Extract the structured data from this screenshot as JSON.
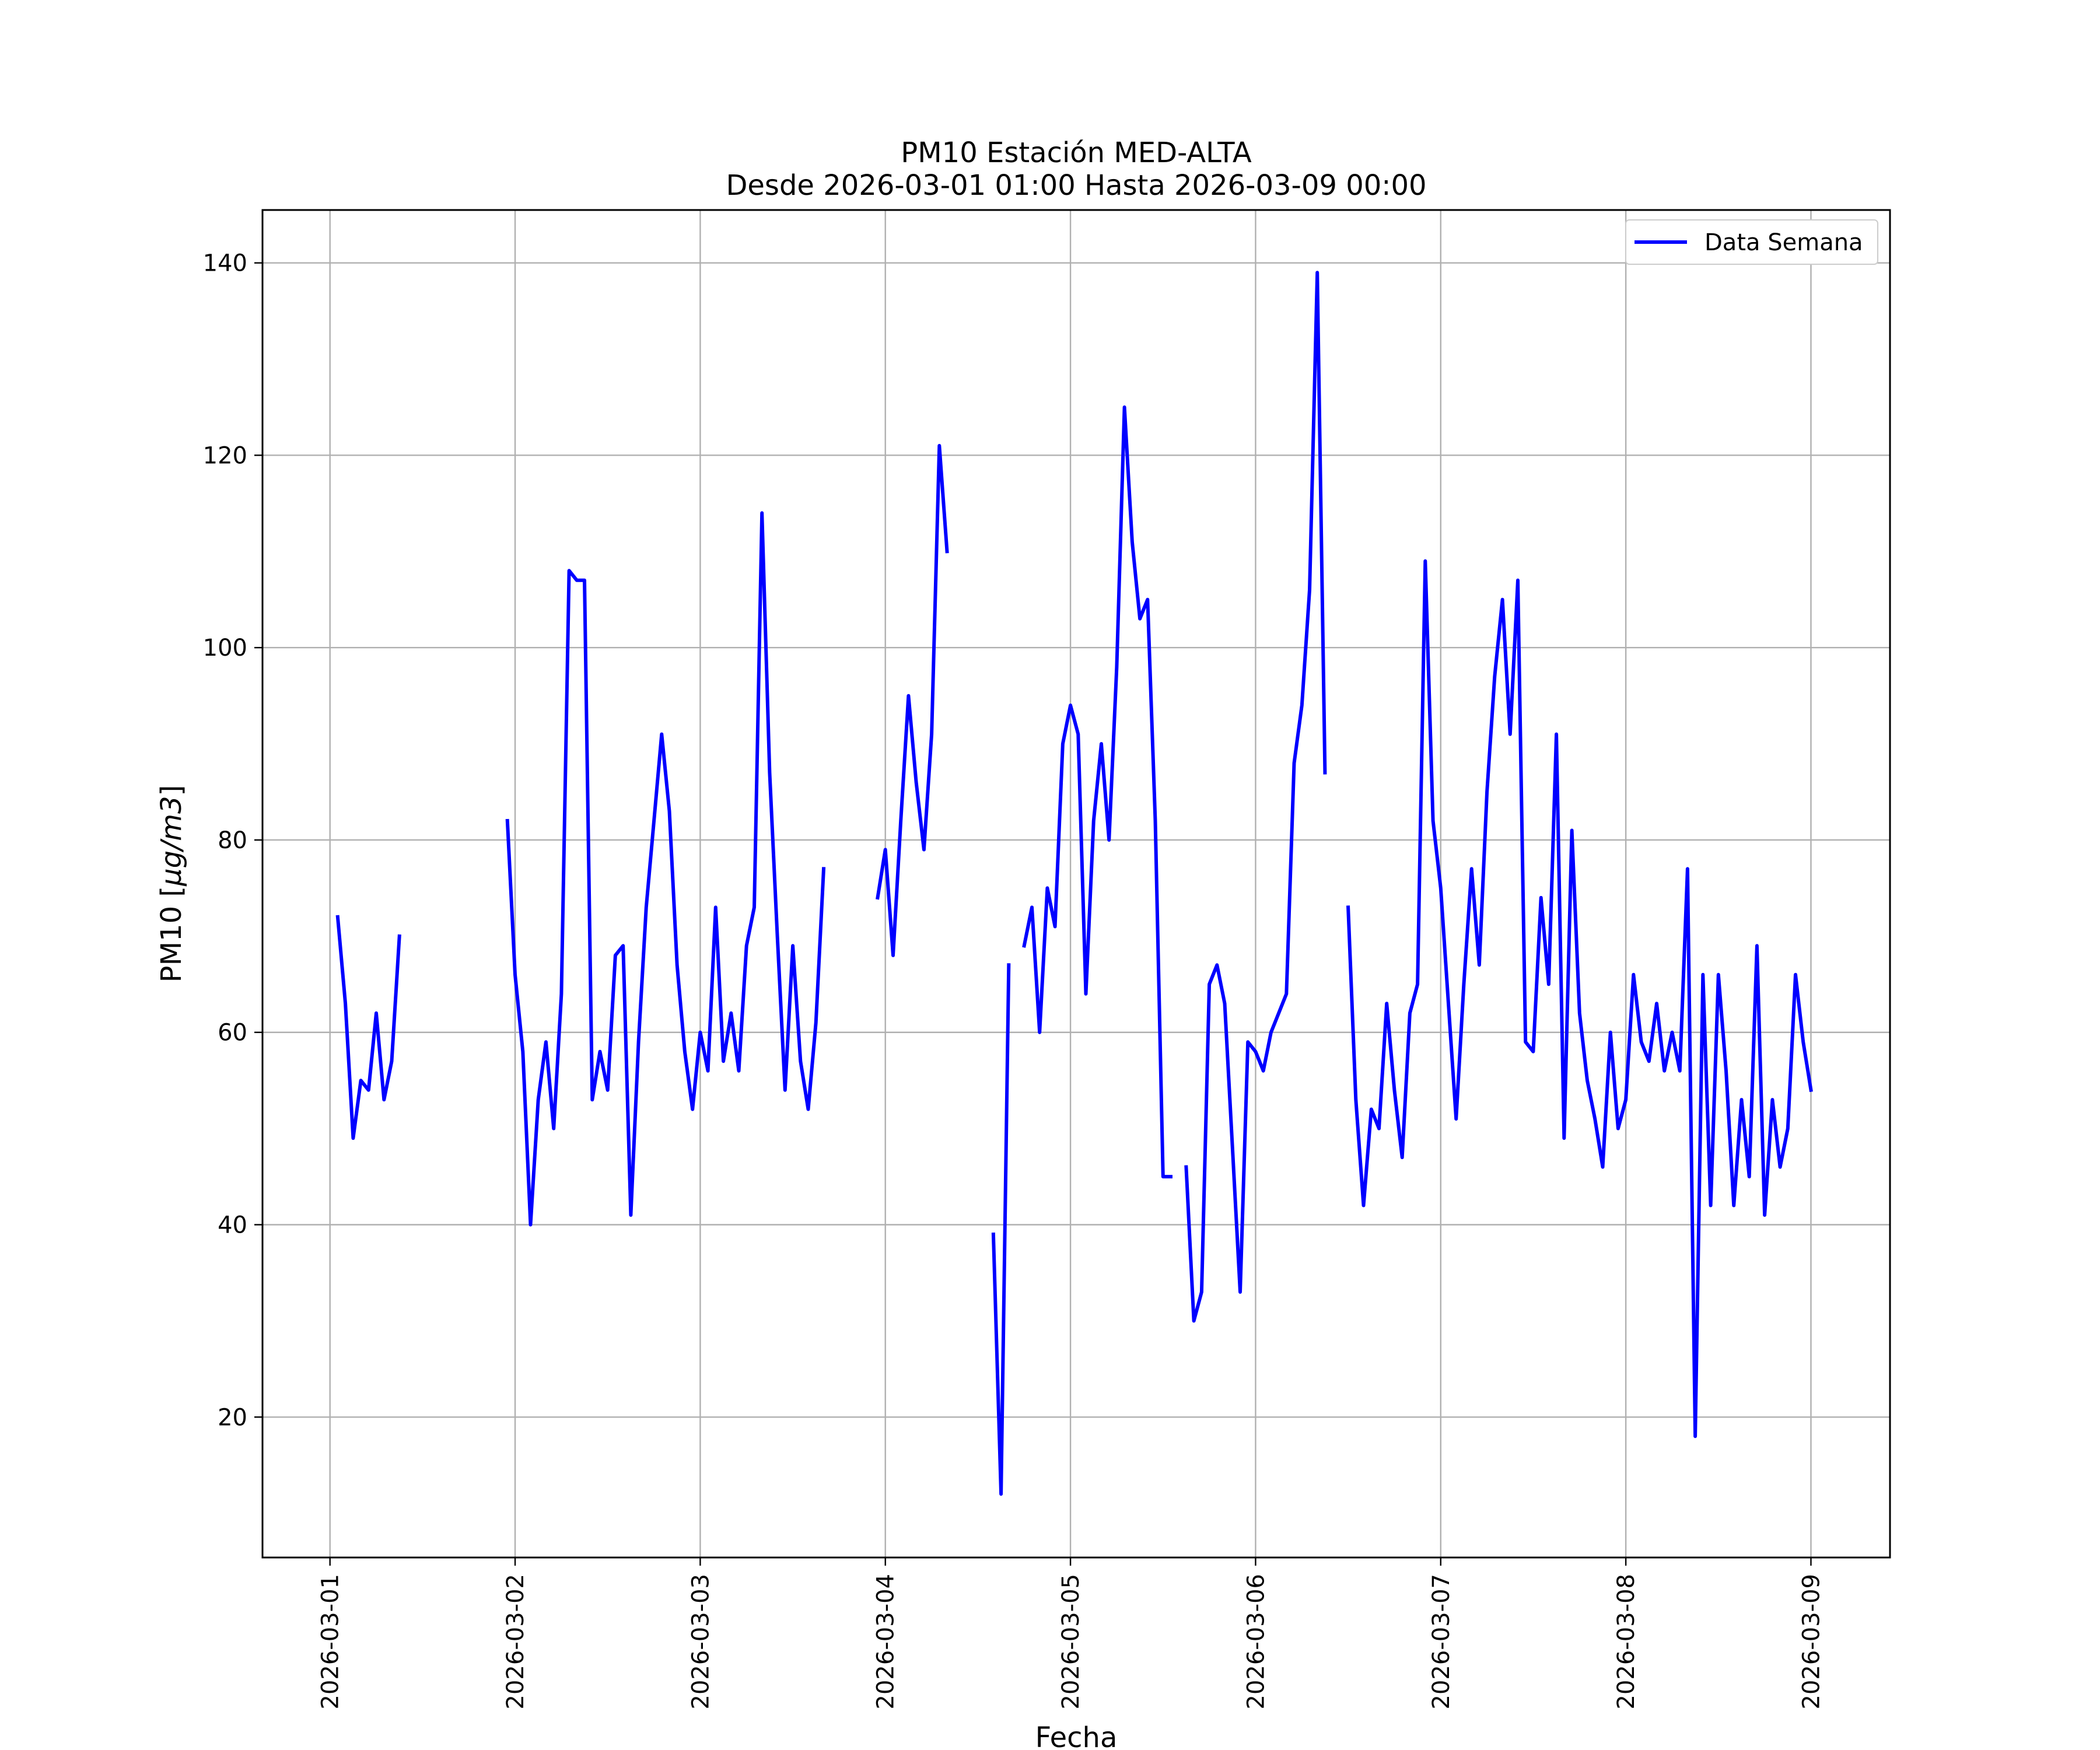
{
  "chart_data": {
    "type": "line",
    "title": "PM10 Estación MED-ALTA",
    "subtitle": "Desde 2026-03-01 01:00 Hasta 2026-03-09 00:00",
    "xlabel": "Fecha",
    "ylabel_text": "PM10 [",
    "ylabel_math": "μg/m3",
    "ylabel_close": "]",
    "x_ticks": [
      "2026-03-01",
      "2026-03-02",
      "2026-03-03",
      "2026-03-04",
      "2026-03-05",
      "2026-03-06",
      "2026-03-07",
      "2026-03-08",
      "2026-03-09"
    ],
    "y_ticks": [
      20,
      40,
      60,
      80,
      100,
      120,
      140
    ],
    "xlim": [
      "2026-02-28 15:15",
      "2026-03-09 10:15"
    ],
    "ylim": [
      5.4,
      145.5
    ],
    "grid": true,
    "legend_position": "top-right",
    "series": [
      {
        "name": "Data Semana",
        "color": "#0000ff",
        "segments": [
          [
            [
              "2026-03-01 01:00",
              72
            ],
            [
              "2026-03-01 02:00",
              63
            ],
            [
              "2026-03-01 03:00",
              49
            ],
            [
              "2026-03-01 04:00",
              55
            ],
            [
              "2026-03-01 05:00",
              54
            ],
            [
              "2026-03-01 06:00",
              62
            ],
            [
              "2026-03-01 07:00",
              53
            ],
            [
              "2026-03-01 08:00",
              57
            ],
            [
              "2026-03-01 09:00",
              70
            ]
          ],
          [
            [
              "2026-03-01 23:00",
              82
            ],
            [
              "2026-03-02 00:00",
              66
            ],
            [
              "2026-03-02 01:00",
              58
            ],
            [
              "2026-03-02 02:00",
              40
            ],
            [
              "2026-03-02 03:00",
              53
            ],
            [
              "2026-03-02 04:00",
              59
            ],
            [
              "2026-03-02 05:00",
              50
            ],
            [
              "2026-03-02 06:00",
              64
            ],
            [
              "2026-03-02 07:00",
              108
            ],
            [
              "2026-03-02 08:00",
              107
            ],
            [
              "2026-03-02 09:00",
              107
            ],
            [
              "2026-03-02 10:00",
              53
            ],
            [
              "2026-03-02 11:00",
              58
            ],
            [
              "2026-03-02 12:00",
              54
            ],
            [
              "2026-03-02 13:00",
              68
            ],
            [
              "2026-03-02 14:00",
              69
            ],
            [
              "2026-03-02 15:00",
              41
            ],
            [
              "2026-03-02 16:00",
              59
            ],
            [
              "2026-03-02 17:00",
              73
            ],
            [
              "2026-03-02 18:00",
              82
            ],
            [
              "2026-03-02 19:00",
              91
            ],
            [
              "2026-03-02 20:00",
              83
            ],
            [
              "2026-03-02 21:00",
              67
            ],
            [
              "2026-03-02 22:00",
              58
            ],
            [
              "2026-03-02 23:00",
              52
            ],
            [
              "2026-03-03 00:00",
              60
            ],
            [
              "2026-03-03 01:00",
              56
            ],
            [
              "2026-03-03 02:00",
              73
            ],
            [
              "2026-03-03 03:00",
              57
            ],
            [
              "2026-03-03 04:00",
              62
            ],
            [
              "2026-03-03 05:00",
              56
            ],
            [
              "2026-03-03 06:00",
              69
            ],
            [
              "2026-03-03 07:00",
              73
            ],
            [
              "2026-03-03 08:00",
              114
            ],
            [
              "2026-03-03 09:00",
              87
            ],
            [
              "2026-03-03 10:00",
              70
            ],
            [
              "2026-03-03 11:00",
              54
            ],
            [
              "2026-03-03 12:00",
              69
            ],
            [
              "2026-03-03 13:00",
              57
            ],
            [
              "2026-03-03 14:00",
              52
            ],
            [
              "2026-03-03 15:00",
              61
            ],
            [
              "2026-03-03 16:00",
              77
            ]
          ],
          [
            [
              "2026-03-03 23:00",
              74
            ],
            [
              "2026-03-04 00:00",
              79
            ],
            [
              "2026-03-04 01:00",
              68
            ],
            [
              "2026-03-04 02:00",
              82
            ],
            [
              "2026-03-04 03:00",
              95
            ],
            [
              "2026-03-04 04:00",
              86
            ],
            [
              "2026-03-04 05:00",
              79
            ],
            [
              "2026-03-04 06:00",
              91
            ],
            [
              "2026-03-04 07:00",
              121
            ],
            [
              "2026-03-04 08:00",
              110
            ]
          ],
          [
            [
              "2026-03-04 14:00",
              39
            ],
            [
              "2026-03-04 15:00",
              12
            ],
            [
              "2026-03-04 16:00",
              67
            ]
          ],
          [
            [
              "2026-03-04 18:00",
              69
            ],
            [
              "2026-03-04 19:00",
              73
            ],
            [
              "2026-03-04 20:00",
              60
            ],
            [
              "2026-03-04 21:00",
              75
            ],
            [
              "2026-03-04 22:00",
              71
            ],
            [
              "2026-03-04 23:00",
              90
            ],
            [
              "2026-03-05 00:00",
              94
            ],
            [
              "2026-03-05 01:00",
              91
            ],
            [
              "2026-03-05 02:00",
              64
            ],
            [
              "2026-03-05 03:00",
              82
            ],
            [
              "2026-03-05 04:00",
              90
            ],
            [
              "2026-03-05 05:00",
              80
            ],
            [
              "2026-03-05 06:00",
              98
            ],
            [
              "2026-03-05 07:00",
              125
            ],
            [
              "2026-03-05 08:00",
              111
            ],
            [
              "2026-03-05 09:00",
              103
            ],
            [
              "2026-03-05 10:00",
              105
            ],
            [
              "2026-03-05 11:00",
              82
            ],
            [
              "2026-03-05 12:00",
              45
            ],
            [
              "2026-03-05 13:00",
              45
            ]
          ],
          [
            [
              "2026-03-05 15:00",
              46
            ],
            [
              "2026-03-05 16:00",
              30
            ],
            [
              "2026-03-05 17:00",
              33
            ],
            [
              "2026-03-05 18:00",
              65
            ],
            [
              "2026-03-05 19:00",
              67
            ],
            [
              "2026-03-05 20:00",
              63
            ],
            [
              "2026-03-05 21:00",
              48
            ],
            [
              "2026-03-05 22:00",
              33
            ],
            [
              "2026-03-05 23:00",
              59
            ],
            [
              "2026-03-06 00:00",
              58
            ],
            [
              "2026-03-06 01:00",
              56
            ],
            [
              "2026-03-06 02:00",
              60
            ],
            [
              "2026-03-06 03:00",
              62
            ],
            [
              "2026-03-06 04:00",
              64
            ],
            [
              "2026-03-06 05:00",
              88
            ],
            [
              "2026-03-06 06:00",
              94
            ],
            [
              "2026-03-06 07:00",
              106
            ],
            [
              "2026-03-06 08:00",
              139
            ],
            [
              "2026-03-06 09:00",
              87
            ]
          ],
          [
            [
              "2026-03-06 12:00",
              73
            ],
            [
              "2026-03-06 13:00",
              53
            ],
            [
              "2026-03-06 14:00",
              42
            ],
            [
              "2026-03-06 15:00",
              52
            ],
            [
              "2026-03-06 16:00",
              50
            ],
            [
              "2026-03-06 17:00",
              63
            ],
            [
              "2026-03-06 18:00",
              54
            ],
            [
              "2026-03-06 19:00",
              47
            ],
            [
              "2026-03-06 20:00",
              62
            ],
            [
              "2026-03-06 21:00",
              65
            ],
            [
              "2026-03-06 22:00",
              109
            ],
            [
              "2026-03-06 23:00",
              82
            ],
            [
              "2026-03-07 00:00",
              75
            ],
            [
              "2026-03-07 01:00",
              63
            ],
            [
              "2026-03-07 02:00",
              51
            ],
            [
              "2026-03-07 03:00",
              65
            ],
            [
              "2026-03-07 04:00",
              77
            ],
            [
              "2026-03-07 05:00",
              67
            ],
            [
              "2026-03-07 06:00",
              85
            ],
            [
              "2026-03-07 07:00",
              97
            ],
            [
              "2026-03-07 08:00",
              105
            ],
            [
              "2026-03-07 09:00",
              91
            ],
            [
              "2026-03-07 10:00",
              107
            ],
            [
              "2026-03-07 11:00",
              59
            ],
            [
              "2026-03-07 12:00",
              58
            ],
            [
              "2026-03-07 13:00",
              74
            ],
            [
              "2026-03-07 14:00",
              65
            ],
            [
              "2026-03-07 15:00",
              91
            ],
            [
              "2026-03-07 16:00",
              49
            ],
            [
              "2026-03-07 17:00",
              81
            ],
            [
              "2026-03-07 18:00",
              62
            ],
            [
              "2026-03-07 19:00",
              55
            ],
            [
              "2026-03-07 20:00",
              51
            ],
            [
              "2026-03-07 21:00",
              46
            ],
            [
              "2026-03-07 22:00",
              60
            ],
            [
              "2026-03-07 23:00",
              50
            ],
            [
              "2026-03-08 00:00",
              53
            ],
            [
              "2026-03-08 01:00",
              66
            ],
            [
              "2026-03-08 02:00",
              59
            ],
            [
              "2026-03-08 03:00",
              57
            ],
            [
              "2026-03-08 04:00",
              63
            ],
            [
              "2026-03-08 05:00",
              56
            ],
            [
              "2026-03-08 06:00",
              60
            ],
            [
              "2026-03-08 07:00",
              56
            ],
            [
              "2026-03-08 08:00",
              77
            ],
            [
              "2026-03-08 09:00",
              18
            ],
            [
              "2026-03-08 10:00",
              66
            ],
            [
              "2026-03-08 11:00",
              42
            ],
            [
              "2026-03-08 12:00",
              66
            ],
            [
              "2026-03-08 13:00",
              56
            ],
            [
              "2026-03-08 14:00",
              42
            ],
            [
              "2026-03-08 15:00",
              53
            ],
            [
              "2026-03-08 16:00",
              45
            ],
            [
              "2026-03-08 17:00",
              69
            ],
            [
              "2026-03-08 18:00",
              41
            ],
            [
              "2026-03-08 19:00",
              53
            ],
            [
              "2026-03-08 20:00",
              46
            ],
            [
              "2026-03-08 21:00",
              50
            ],
            [
              "2026-03-08 22:00",
              66
            ],
            [
              "2026-03-08 23:00",
              59
            ],
            [
              "2026-03-09 00:00",
              54
            ]
          ]
        ]
      }
    ]
  }
}
